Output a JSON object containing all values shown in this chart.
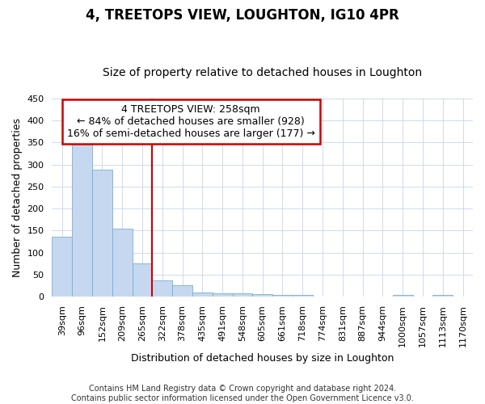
{
  "title": "4, TREETOPS VIEW, LOUGHTON, IG10 4PR",
  "subtitle": "Size of property relative to detached houses in Loughton",
  "xlabel": "Distribution of detached houses by size in Loughton",
  "ylabel": "Number of detached properties",
  "bar_color": "#c5d8f0",
  "bar_edge_color": "#7aadd4",
  "background_color": "#ffffff",
  "grid_color": "#c8d4e8",
  "categories": [
    "39sqm",
    "96sqm",
    "152sqm",
    "209sqm",
    "265sqm",
    "322sqm",
    "378sqm",
    "435sqm",
    "491sqm",
    "548sqm",
    "605sqm",
    "661sqm",
    "718sqm",
    "774sqm",
    "831sqm",
    "887sqm",
    "944sqm",
    "1000sqm",
    "1057sqm",
    "1113sqm",
    "1170sqm"
  ],
  "values": [
    135,
    370,
    288,
    155,
    75,
    37,
    25,
    10,
    8,
    7,
    5,
    4,
    4,
    0,
    0,
    0,
    0,
    4,
    0,
    4,
    0
  ],
  "ylim": [
    0,
    450
  ],
  "yticks": [
    0,
    50,
    100,
    150,
    200,
    250,
    300,
    350,
    400,
    450
  ],
  "property_line_x": 4.5,
  "property_label": "4 TREETOPS VIEW: 258sqm",
  "annotation_line1": "← 84% of detached houses are smaller (928)",
  "annotation_line2": "16% of semi-detached houses are larger (177) →",
  "annotation_box_color": "#ffffff",
  "annotation_box_edge": "#cc0000",
  "vline_color": "#cc0000",
  "footer1": "Contains HM Land Registry data © Crown copyright and database right 2024.",
  "footer2": "Contains public sector information licensed under the Open Government Licence v3.0.",
  "title_fontsize": 12,
  "subtitle_fontsize": 10,
  "label_fontsize": 9,
  "tick_fontsize": 8,
  "annotation_fontsize": 9,
  "footer_fontsize": 7
}
